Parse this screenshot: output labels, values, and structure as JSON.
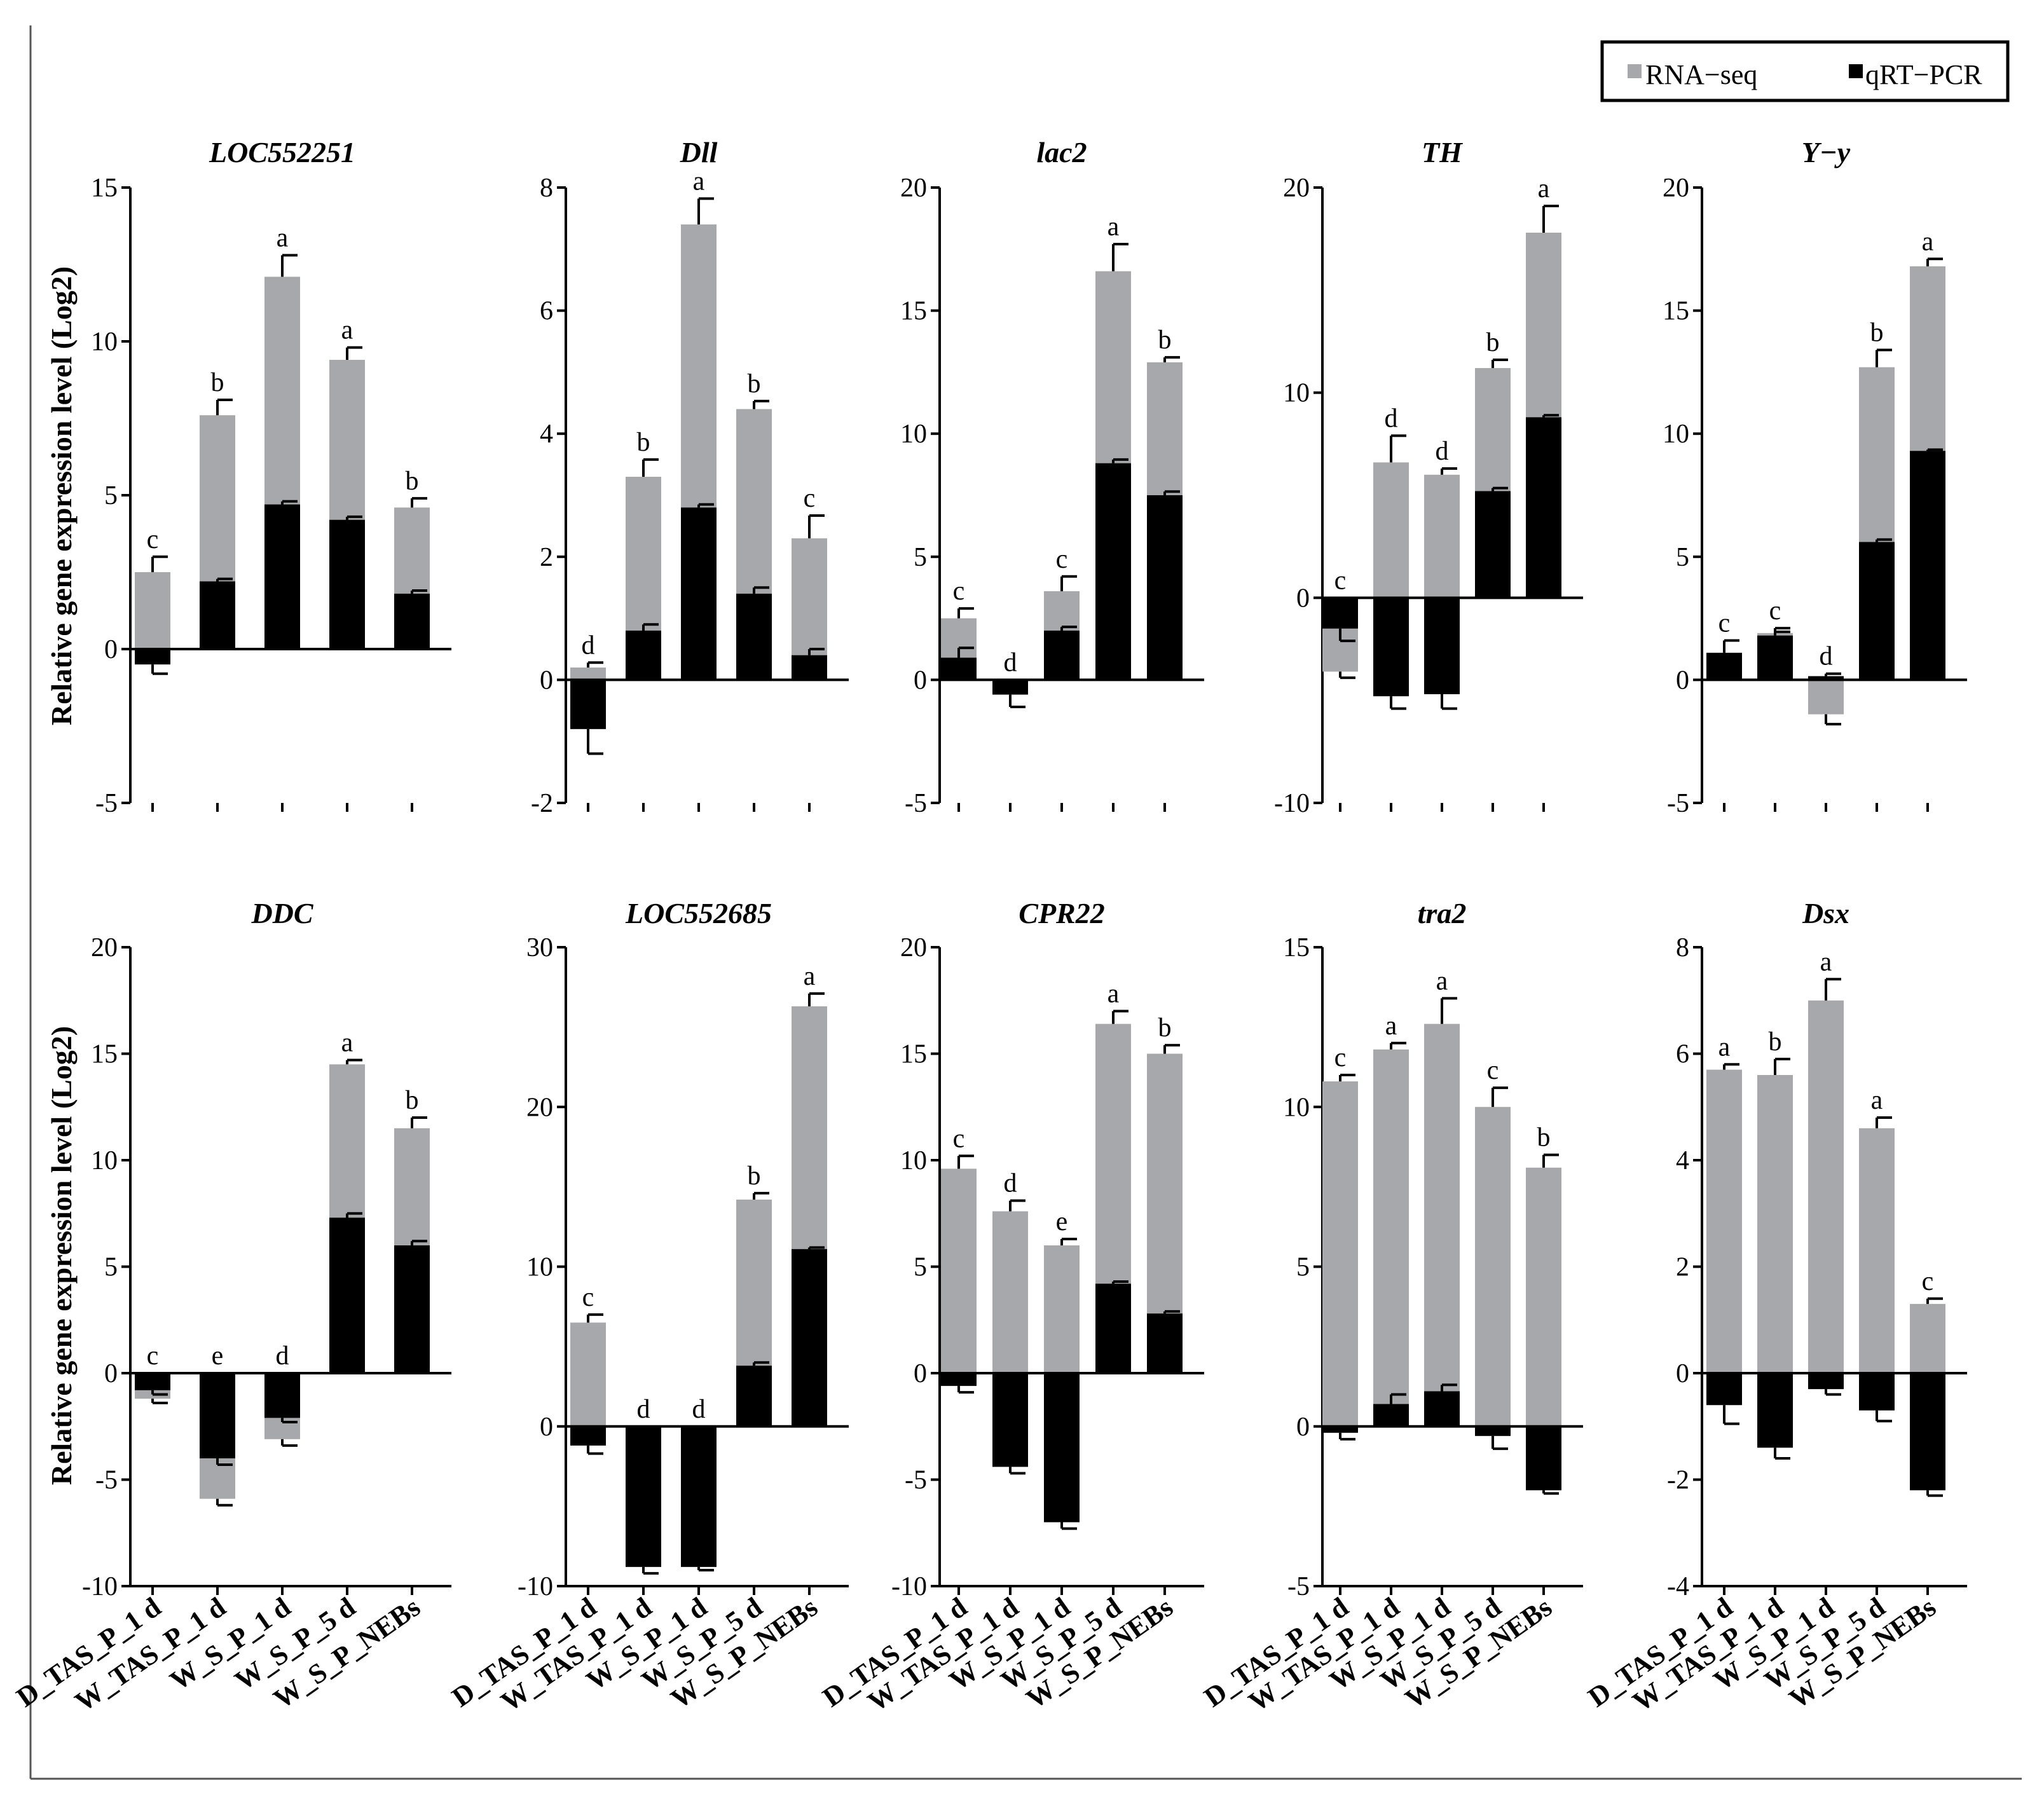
{
  "legend": {
    "rna_label": "RNA−seq",
    "qpcr_label": "qRT−PCR",
    "placement": "top-right"
  },
  "colors": {
    "rna": "#a7a8ac",
    "qpcr": "#000000",
    "axis": "#000000"
  },
  "ylabel": "Relative gene expression level (Log2)",
  "chart_data": [
    {
      "type": "bar",
      "title": "LOC552251",
      "ylim": [
        -5,
        15
      ],
      "yticks": [
        -5,
        0,
        5,
        10,
        15
      ],
      "categories": [
        "D_TAS_P_1 d",
        "W_TAS_P_1 d",
        "W_S_P_1 d",
        "W_S_P_5 d",
        "W_S_P_NEBs"
      ],
      "series": [
        {
          "name": "RNA−seq",
          "values": [
            2.5,
            7.6,
            12.1,
            9.4,
            4.6
          ],
          "errors": [
            0.5,
            0.5,
            0.7,
            0.4,
            0.3
          ]
        },
        {
          "name": "qRT−PCR",
          "values": [
            -0.5,
            2.2,
            4.7,
            4.2,
            1.8
          ],
          "errors": [
            0.3,
            0.08,
            0.1,
            0.1,
            0.1
          ]
        }
      ],
      "letters": [
        "c",
        "b",
        "a",
        "a",
        "b"
      ]
    },
    {
      "type": "bar",
      "title": "Dll",
      "ylim": [
        -2,
        8
      ],
      "yticks": [
        -2,
        0,
        2,
        4,
        6,
        8
      ],
      "categories": [
        "D_TAS_P_1 d",
        "W_TAS_P_1 d",
        "W_S_P_1 d",
        "W_S_P_5 d",
        "W_S_P_NEBs"
      ],
      "series": [
        {
          "name": "RNA−seq",
          "values": [
            0.2,
            3.3,
            7.4,
            4.4,
            2.3
          ],
          "errors": [
            0.08,
            0.28,
            0.42,
            0.13,
            0.37
          ]
        },
        {
          "name": "qRT−PCR",
          "values": [
            -0.8,
            0.8,
            2.8,
            1.4,
            0.4
          ],
          "errors": [
            0.4,
            0.1,
            0.05,
            0.1,
            0.1
          ]
        }
      ],
      "letters": [
        "d",
        "b",
        "a",
        "b",
        "c"
      ]
    },
    {
      "type": "bar",
      "title": "lac2",
      "ylim": [
        -5,
        20
      ],
      "yticks": [
        -5,
        0,
        5,
        10,
        15,
        20
      ],
      "categories": [
        "D_TAS_P_1 d",
        "W_TAS_P_1 d",
        "W_S_P_1 d",
        "W_S_P_5 d",
        "W_S_P_NEBs"
      ],
      "series": [
        {
          "name": "RNA−seq",
          "values": [
            2.5,
            0,
            3.6,
            16.6,
            12.9
          ],
          "errors": [
            0.4,
            0,
            0.6,
            1.1,
            0.2
          ]
        },
        {
          "name": "qRT−PCR",
          "values": [
            0.9,
            -0.6,
            2.0,
            8.8,
            7.5
          ],
          "errors": [
            0.4,
            0.5,
            0.15,
            0.15,
            0.15
          ]
        }
      ],
      "letters": [
        "c",
        "d",
        "c",
        "a",
        "b"
      ]
    },
    {
      "type": "bar",
      "title": "TH",
      "ylim": [
        -10,
        20
      ],
      "yticks": [
        -10,
        0,
        10,
        20
      ],
      "categories": [
        "D_TAS_P_1 d",
        "W_TAS_P_1 d",
        "W_S_P_1 d",
        "W_S_P_5 d",
        "W_S_P_NEBs"
      ],
      "series": [
        {
          "name": "RNA−seq",
          "values": [
            -3.6,
            6.6,
            6.0,
            11.2,
            17.8
          ],
          "errors": [
            0.3,
            1.3,
            0.3,
            0.4,
            1.3
          ]
        },
        {
          "name": "qRT−PCR",
          "values": [
            -1.5,
            -4.8,
            -4.7,
            5.2,
            8.8
          ],
          "errors": [
            0.6,
            0.6,
            0.7,
            0.15,
            0.1
          ]
        }
      ],
      "letters": [
        "c",
        "d",
        "d",
        "b",
        "a"
      ]
    },
    {
      "type": "bar",
      "title": "Y−y",
      "ylim": [
        -5,
        20
      ],
      "yticks": [
        -5,
        0,
        5,
        10,
        15,
        20
      ],
      "categories": [
        "D_TAS_P_1 d",
        "W_TAS_P_1 d",
        "W_S_P_1 d",
        "W_S_P_5 d",
        "W_S_P_NEBs"
      ],
      "series": [
        {
          "name": "RNA−seq",
          "values": [
            0,
            1.9,
            -1.4,
            12.7,
            16.8
          ],
          "errors": [
            0,
            0.2,
            0.4,
            0.7,
            0.3
          ]
        },
        {
          "name": "qRT−PCR",
          "values": [
            1.1,
            1.8,
            0.15,
            5.6,
            9.3
          ],
          "errors": [
            0.5,
            0.15,
            0.1,
            0.1,
            0.05
          ]
        }
      ],
      "letters": [
        "c",
        "c",
        "d",
        "b",
        "a"
      ]
    },
    {
      "type": "bar",
      "title": "DDC",
      "ylim": [
        -10,
        20
      ],
      "yticks": [
        -10,
        -5,
        0,
        5,
        10,
        15,
        20
      ],
      "categories": [
        "D_TAS_P_1 d",
        "W_TAS_P_1 d",
        "W_S_P_1 d",
        "W_S_P_5 d",
        "W_S_P_NEBs"
      ],
      "series": [
        {
          "name": "RNA−seq",
          "values": [
            -1.2,
            -5.9,
            -3.1,
            14.5,
            11.5
          ],
          "errors": [
            0.2,
            0.3,
            0.3,
            0.2,
            0.5
          ]
        },
        {
          "name": "qRT−PCR",
          "values": [
            -0.8,
            -4.0,
            -2.1,
            7.3,
            6.0
          ],
          "errors": [
            0.2,
            0.3,
            0.2,
            0.2,
            0.2
          ]
        }
      ],
      "letters": [
        "c",
        "e",
        "d",
        "a",
        "b"
      ]
    },
    {
      "type": "bar",
      "title": "LOC552685",
      "ylim": [
        -10,
        30
      ],
      "yticks": [
        -10,
        0,
        10,
        20,
        30
      ],
      "categories": [
        "D_TAS_P_1 d",
        "W_TAS_P_1 d",
        "W_S_P_1 d",
        "W_S_P_5 d",
        "W_S_P_NEBs"
      ],
      "series": [
        {
          "name": "RNA−seq",
          "values": [
            6.5,
            0,
            0,
            14.2,
            26.3
          ],
          "errors": [
            0.5,
            0,
            0,
            0.4,
            0.8
          ]
        },
        {
          "name": "qRT−PCR",
          "values": [
            -1.2,
            -8.8,
            -8.8,
            3.8,
            11.1
          ],
          "errors": [
            0.5,
            0.4,
            0.2,
            0.2,
            0.1
          ]
        }
      ],
      "letters": [
        "c",
        "d",
        "d",
        "b",
        "a"
      ]
    },
    {
      "type": "bar",
      "title": "CPR22",
      "ylim": [
        -10,
        20
      ],
      "yticks": [
        -10,
        -5,
        0,
        5,
        10,
        15,
        20
      ],
      "categories": [
        "D_TAS_P_1 d",
        "W_TAS_P_1 d",
        "W_S_P_1 d",
        "W_S_P_5 d",
        "W_S_P_NEBs"
      ],
      "series": [
        {
          "name": "RNA−seq",
          "values": [
            9.6,
            7.6,
            6.0,
            16.4,
            15.0
          ],
          "errors": [
            0.6,
            0.5,
            0.3,
            0.6,
            0.4
          ]
        },
        {
          "name": "qRT−PCR",
          "values": [
            -0.6,
            -4.4,
            -7.0,
            4.2,
            2.8
          ],
          "errors": [
            0.3,
            0.3,
            0.3,
            0.1,
            0.1
          ]
        }
      ],
      "letters": [
        "c",
        "d",
        "e",
        "a",
        "b"
      ]
    },
    {
      "type": "bar",
      "title": "tra2",
      "ylim": [
        -5,
        15
      ],
      "yticks": [
        -5,
        0,
        5,
        10,
        15
      ],
      "categories": [
        "D_TAS_P_1 d",
        "W_TAS_P_1 d",
        "W_S_P_1 d",
        "W_S_P_5 d",
        "W_S_P_NEBs"
      ],
      "series": [
        {
          "name": "RNA−seq",
          "values": [
            10.8,
            11.8,
            12.6,
            10.0,
            8.1
          ],
          "errors": [
            0.2,
            0.2,
            0.8,
            0.6,
            0.4
          ]
        },
        {
          "name": "qRT−PCR",
          "values": [
            -0.2,
            0.7,
            1.1,
            -0.3,
            -2.0
          ],
          "errors": [
            0.2,
            0.3,
            0.2,
            0.4,
            0.1
          ]
        }
      ],
      "letters": [
        "c",
        "a",
        "a",
        "c",
        "b"
      ]
    },
    {
      "type": "bar",
      "title": "Dsx",
      "ylim": [
        -4,
        8
      ],
      "yticks": [
        -4,
        -2,
        0,
        2,
        4,
        6,
        8
      ],
      "categories": [
        "D_TAS_P_1 d",
        "W_TAS_P_1 d",
        "W_S_P_1 d",
        "W_S_P_5 d",
        "W_S_P_NEBs"
      ],
      "series": [
        {
          "name": "RNA−seq",
          "values": [
            5.7,
            5.6,
            7.0,
            4.6,
            1.3
          ],
          "errors": [
            0.1,
            0.3,
            0.4,
            0.2,
            0.1
          ]
        },
        {
          "name": "qRT−PCR",
          "values": [
            -0.6,
            -1.4,
            -0.3,
            -0.7,
            -2.2
          ],
          "errors": [
            0.35,
            0.2,
            0.1,
            0.2,
            0.1
          ]
        }
      ],
      "letters": [
        "a",
        "b",
        "a",
        "a",
        "c"
      ]
    }
  ]
}
